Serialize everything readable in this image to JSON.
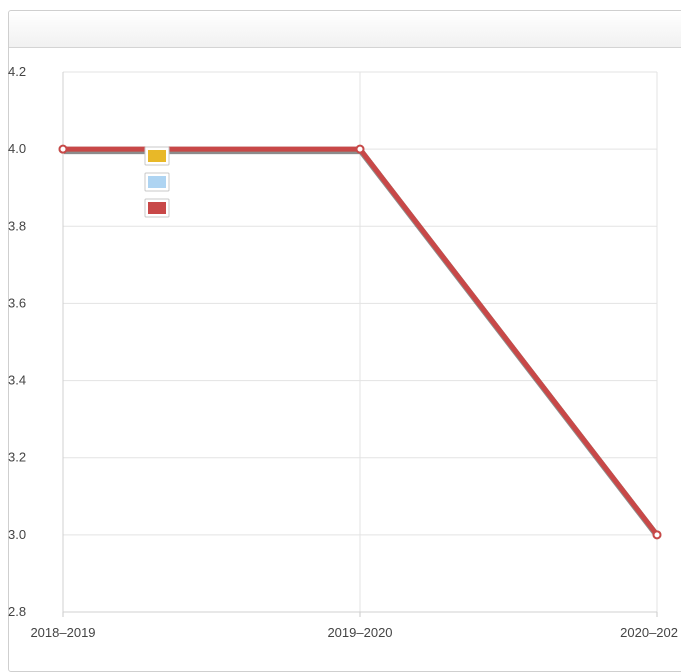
{
  "panel": {
    "title": ""
  },
  "chart_data": {
    "type": "line",
    "title": "",
    "xlabel": "",
    "ylabel": "",
    "categories": [
      "2018–2019",
      "2019–2020",
      "2020–202"
    ],
    "ylim": [
      2.8,
      4.2
    ],
    "yticks": [
      "4.2",
      "4.0",
      "3.8",
      "3.6",
      "3.4",
      "3.2",
      "3.0",
      "2.8"
    ],
    "ytick_values": [
      4.2,
      4.0,
      3.8,
      3.6,
      3.4,
      3.2,
      3.0,
      2.8
    ],
    "grid": true,
    "legend_position": "top-left",
    "series": [
      {
        "color": "#e8b828",
        "values": [
          4.0,
          4.0,
          3.0
        ]
      },
      {
        "color": "#aed4f2",
        "values": [
          4.0,
          4.0,
          3.0
        ]
      },
      {
        "color": "#c84848",
        "values": [
          4.0,
          4.0,
          3.0
        ]
      }
    ]
  }
}
